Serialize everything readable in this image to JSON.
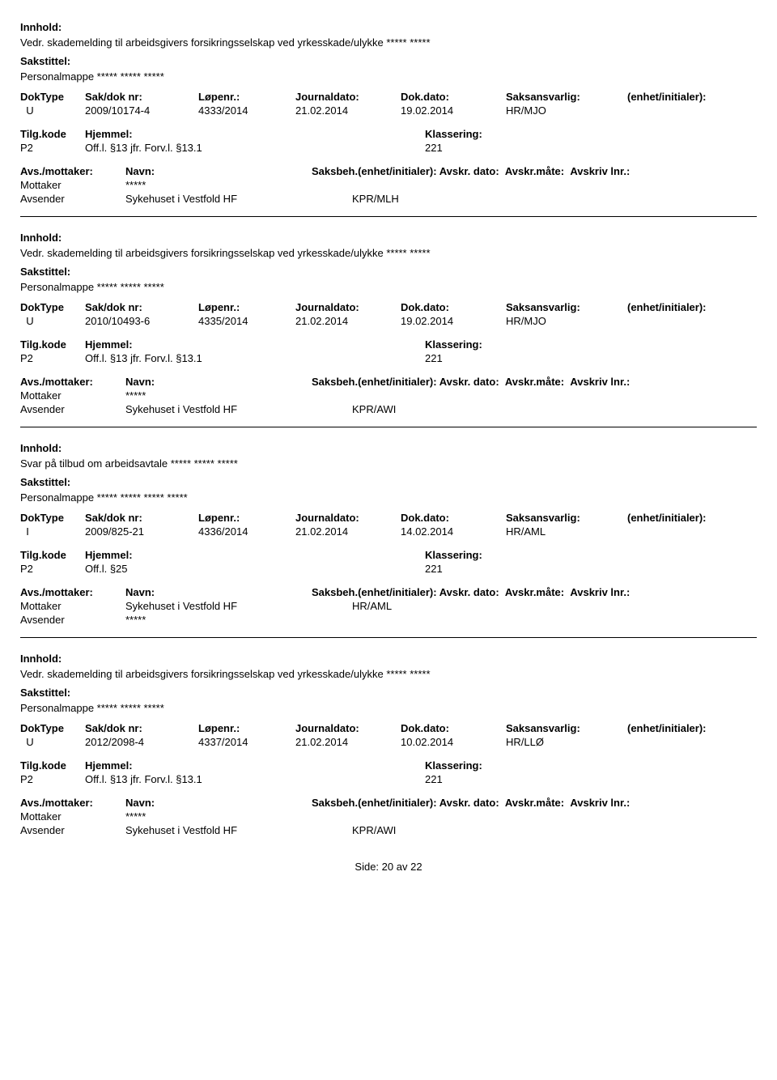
{
  "labels": {
    "innhold": "Innhold:",
    "sakstittel": "Sakstittel:",
    "doktype": "DokType",
    "sakdok": "Sak/dok nr:",
    "lopenr": "Løpenr.:",
    "journaldato": "Journaldato:",
    "dokdato": "Dok.dato:",
    "saksansvarlig": "Saksansvarlig:",
    "enhet": "(enhet/initialer):",
    "tilgkode": "Tilg.kode",
    "hjemmel": "Hjemmel:",
    "klassering": "Klassering:",
    "avsmottaker": "Avs./mottaker:",
    "navn": "Navn:",
    "saksbeh": "Saksbeh.(enhet/initialer):",
    "avskrdato": "Avskr. dato:",
    "avskrmate": "Avskr.måte:",
    "avskrivlnr": "Avskriv lnr.:",
    "mottaker": "Mottaker",
    "avsender": "Avsender"
  },
  "records": [
    {
      "innhold": "Vedr. skademelding til arbeidsgivers forsikringsselskap ved yrkesskade/ulykke ***** *****",
      "sakstittel": "Personalmappe ***** ***** *****",
      "doktype": "U",
      "sakdok": "2009/10174-4",
      "lopenr": "4333/2014",
      "journaldato": "21.02.2014",
      "dokdato": "19.02.2014",
      "saksansvarlig": "HR/MJO",
      "tilgkode": "P2",
      "hjemmel": "Off.l. §13 jfr. Forv.l. §13.1",
      "klassering": "221",
      "mottaker_navn": "*****",
      "avsender_navn": "Sykehuset i Vestfold HF",
      "saksbeh_val": "KPR/MLH",
      "mottaker_first": true
    },
    {
      "innhold": "Vedr. skademelding til arbeidsgivers forsikringsselskap ved yrkesskade/ulykke ***** *****",
      "sakstittel": "Personalmappe ***** ***** *****",
      "doktype": "U",
      "sakdok": "2010/10493-6",
      "lopenr": "4335/2014",
      "journaldato": "21.02.2014",
      "dokdato": "19.02.2014",
      "saksansvarlig": "HR/MJO",
      "tilgkode": "P2",
      "hjemmel": "Off.l. §13 jfr. Forv.l. §13.1",
      "klassering": "221",
      "mottaker_navn": "*****",
      "avsender_navn": "Sykehuset i Vestfold HF",
      "saksbeh_val": "KPR/AWI",
      "mottaker_first": true
    },
    {
      "innhold": "Svar på tilbud om arbeidsavtale ***** ***** *****",
      "sakstittel": "Personalmappe ***** ***** ***** *****",
      "doktype": "I",
      "sakdok": "2009/825-21",
      "lopenr": "4336/2014",
      "journaldato": "21.02.2014",
      "dokdato": "14.02.2014",
      "saksansvarlig": "HR/AML",
      "tilgkode": "P2",
      "hjemmel": "Off.l. §25",
      "klassering": "221",
      "mottaker_navn": "Sykehuset i Vestfold HF",
      "avsender_navn": "*****",
      "saksbeh_val": "HR/AML",
      "mottaker_first": true
    },
    {
      "innhold": "Vedr. skademelding til arbeidsgivers forsikringsselskap ved yrkesskade/ulykke ***** *****",
      "sakstittel": "Personalmappe ***** ***** *****",
      "doktype": "U",
      "sakdok": "2012/2098-4",
      "lopenr": "4337/2014",
      "journaldato": "21.02.2014",
      "dokdato": "10.02.2014",
      "saksansvarlig": "HR/LLØ",
      "tilgkode": "P2",
      "hjemmel": "Off.l. §13 jfr. Forv.l. §13.1",
      "klassering": "221",
      "mottaker_navn": "*****",
      "avsender_navn": "Sykehuset i Vestfold HF",
      "saksbeh_val": "KPR/AWI",
      "mottaker_first": true
    }
  ],
  "footer": {
    "side": "Side:",
    "page": "20",
    "av": "av",
    "total": "22"
  }
}
